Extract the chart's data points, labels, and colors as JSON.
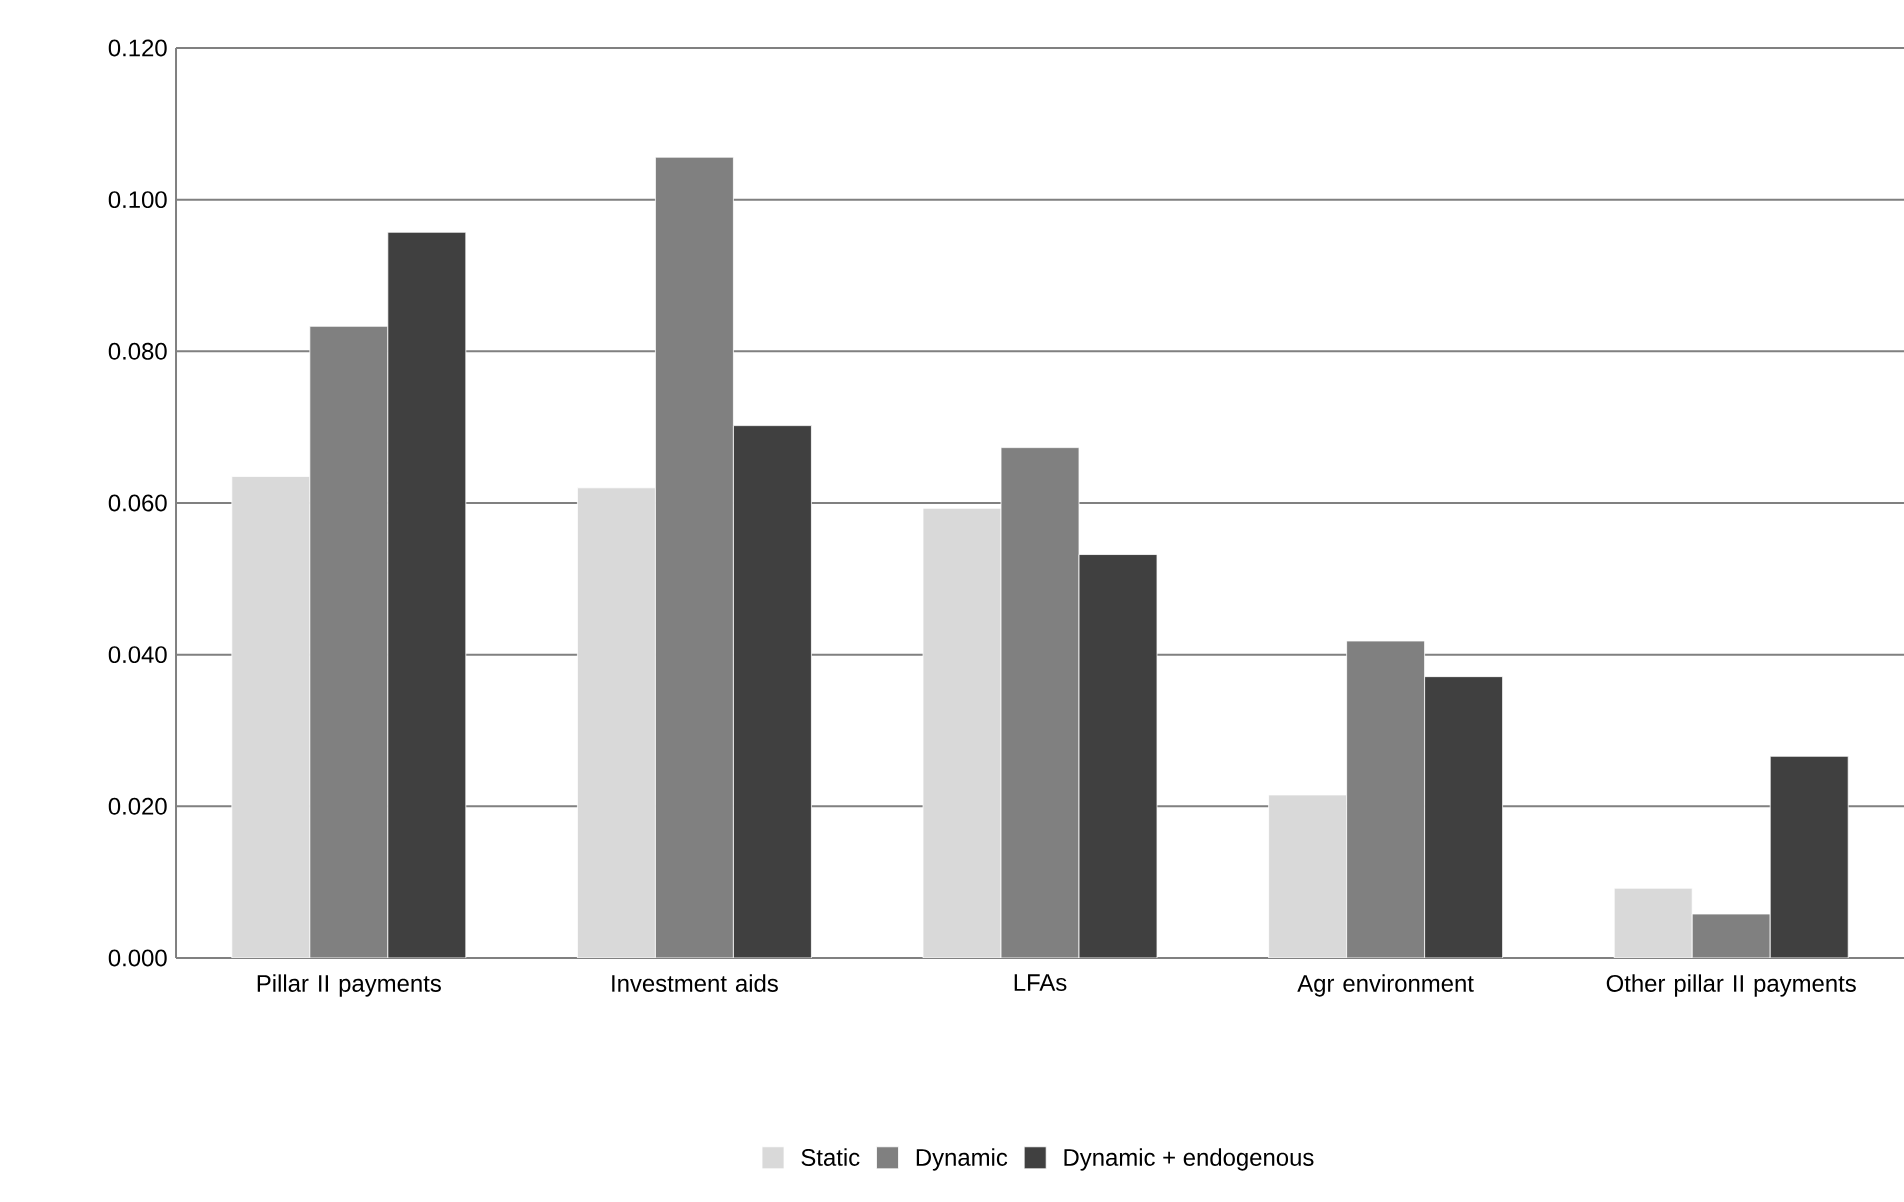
{
  "chart_data": {
    "type": "bar",
    "categories": [
      "Pillar II payments",
      "Investment aids",
      "LFAs",
      "Agr environment",
      "Other pillar II payments"
    ],
    "series": [
      {
        "name": "Static",
        "color": "#d9d9d9",
        "values": [
          0.0635,
          0.062,
          0.0593,
          0.0215,
          0.0092
        ]
      },
      {
        "name": "Dynamic",
        "color": "#808080",
        "values": [
          0.0833,
          0.1056,
          0.0673,
          0.0418,
          0.0058
        ]
      },
      {
        "name": "Dynamic + endogenous",
        "color": "#404040",
        "values": [
          0.0957,
          0.0702,
          0.0532,
          0.0371,
          0.0266
        ]
      }
    ],
    "ylim": [
      0,
      0.12
    ],
    "yticks": [
      {
        "value": 0,
        "label": "0.000"
      },
      {
        "value": 0.02,
        "label": "0.020"
      },
      {
        "value": 0.04,
        "label": "0.040"
      },
      {
        "value": 0.06,
        "label": "0.060"
      },
      {
        "value": 0.08,
        "label": "0.080"
      },
      {
        "value": 0.1,
        "label": "0.100"
      },
      {
        "value": 0.12,
        "label": "0.120"
      }
    ],
    "grid": "y",
    "legend": "bottom"
  }
}
